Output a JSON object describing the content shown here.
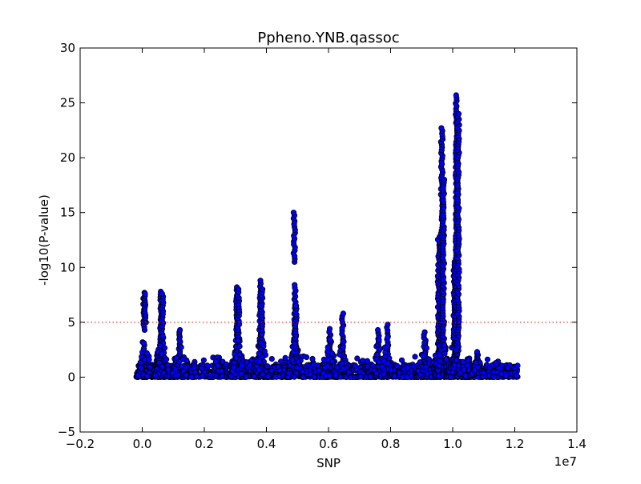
{
  "chart_data": {
    "type": "scatter",
    "title": "Ppheno.YNB.qassoc",
    "xlabel": "SNP",
    "ylabel": "-log10(P-value)",
    "x_multiplier_label": "1e7",
    "xlim": [
      -0.2,
      1.4
    ],
    "ylim": [
      -5,
      30
    ],
    "x_ticks": [
      -0.2,
      0.0,
      0.2,
      0.4,
      0.6,
      0.8,
      1.0,
      1.2,
      1.4
    ],
    "x_tick_labels": [
      "−0.2",
      "0.0",
      "0.2",
      "0.4",
      "0.6",
      "0.8",
      "1.0",
      "1.2",
      "1.4"
    ],
    "y_ticks": [
      -5,
      0,
      5,
      10,
      15,
      20,
      25,
      30
    ],
    "y_tick_labels": [
      "−5",
      "0",
      "5",
      "10",
      "15",
      "20",
      "25",
      "30"
    ],
    "grid": false,
    "legend": "none",
    "threshold": 5,
    "threshold_style": "dotted",
    "colors": {
      "marker_fill": "#0000ff",
      "marker_edge": "#000000",
      "threshold": "#ff0000",
      "axes": "#000000"
    },
    "peaks": [
      {
        "x": 0.006,
        "min": 4.3,
        "max": 7.7
      },
      {
        "x": 0.01,
        "min": 5.0,
        "max": 7.6
      },
      {
        "x": 0.06,
        "min": 0.9,
        "max": 7.8
      },
      {
        "x": 0.065,
        "min": 2.0,
        "max": 7.6
      },
      {
        "x": 0.12,
        "min": 1.5,
        "max": 4.3
      },
      {
        "x": 0.24,
        "min": 0.6,
        "max": 1.8
      },
      {
        "x": 0.305,
        "min": 1.0,
        "max": 8.2
      },
      {
        "x": 0.31,
        "min": 3.5,
        "max": 8.0
      },
      {
        "x": 0.38,
        "min": 3.0,
        "max": 8.8
      },
      {
        "x": 0.385,
        "min": 2.0,
        "max": 8.0
      },
      {
        "x": 0.49,
        "min": 10.5,
        "max": 15.0
      },
      {
        "x": 0.492,
        "min": 0.8,
        "max": 8.4
      },
      {
        "x": 0.495,
        "min": 2.5,
        "max": 6.5
      },
      {
        "x": 0.605,
        "min": 0.8,
        "max": 4.4
      },
      {
        "x": 0.645,
        "min": 1.0,
        "max": 5.8
      },
      {
        "x": 0.76,
        "min": 0.8,
        "max": 4.3
      },
      {
        "x": 0.79,
        "min": 1.0,
        "max": 4.8
      },
      {
        "x": 0.91,
        "min": 0.8,
        "max": 4.1
      },
      {
        "x": 0.955,
        "min": 1.0,
        "max": 12.8
      },
      {
        "x": 0.965,
        "min": 2.0,
        "max": 22.7
      },
      {
        "x": 0.97,
        "min": 3.0,
        "max": 18.0
      },
      {
        "x": 1.005,
        "min": 1.5,
        "max": 10.5
      },
      {
        "x": 1.012,
        "min": 2.0,
        "max": 25.7
      },
      {
        "x": 1.018,
        "min": 3.0,
        "max": 24.0
      },
      {
        "x": 1.08,
        "min": 0.5,
        "max": 2.3
      }
    ],
    "baseline": {
      "x_start": 0.0,
      "x_end": 1.21,
      "typical_max": 1.2
    }
  }
}
